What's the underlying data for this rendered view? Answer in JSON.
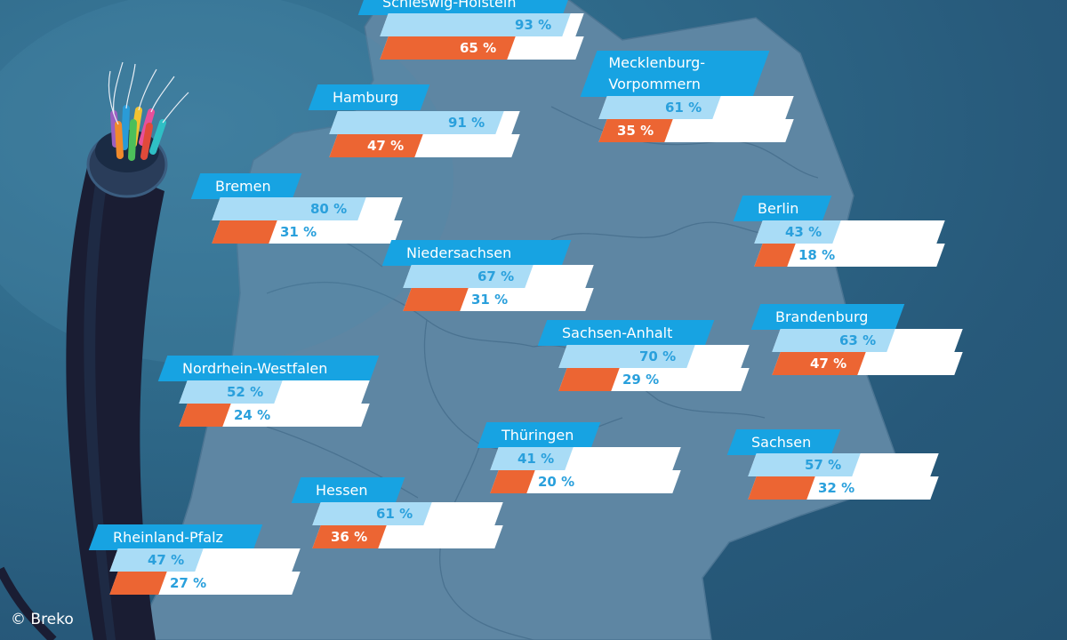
{
  "chart_data": {
    "type": "bar",
    "colors": {
      "series1": "#a9dcf6",
      "series2": "#ec6533",
      "remainder": "#ffffff",
      "state_label": "#17a3e2",
      "text_series1": "#2aa0dc"
    },
    "categories": [
      "Schleswig-Holstein",
      "Hamburg",
      "Mecklenburg-Vorpommern",
      "Bremen",
      "Niedersachsen",
      "Berlin",
      "Brandenburg",
      "Sachsen-Anhalt",
      "Nordrhein-Westfalen",
      "Thüringen",
      "Sachsen",
      "Hessen",
      "Rheinland-Pfalz"
    ],
    "category_lines": {
      "Mecklenburg-Vorpommern": [
        "Mecklenburg-",
        "Vorpommern"
      ]
    },
    "series": [
      {
        "values": [
          93,
          91,
          61,
          80,
          67,
          43,
          63,
          70,
          52,
          41,
          57,
          61,
          47
        ],
        "labels": [
          "93 %",
          "91 %",
          "61 %",
          "80 %",
          "67 %",
          "43 %",
          "63 %",
          "70 %",
          "52 %",
          "41 %",
          "57 %",
          "61 %",
          "47 %"
        ]
      },
      {
        "values": [
          65,
          47,
          35,
          31,
          31,
          18,
          47,
          29,
          24,
          20,
          32,
          36,
          27
        ],
        "labels": [
          "65 %",
          "47 %",
          "35 %",
          "31 %",
          "31 %",
          "18 %",
          "47 %",
          "29 %",
          "24 %",
          "20 %",
          "32 %",
          "36 %",
          "27 %"
        ]
      }
    ],
    "ylim": [
      0,
      100
    ]
  },
  "credit": "© Breko"
}
